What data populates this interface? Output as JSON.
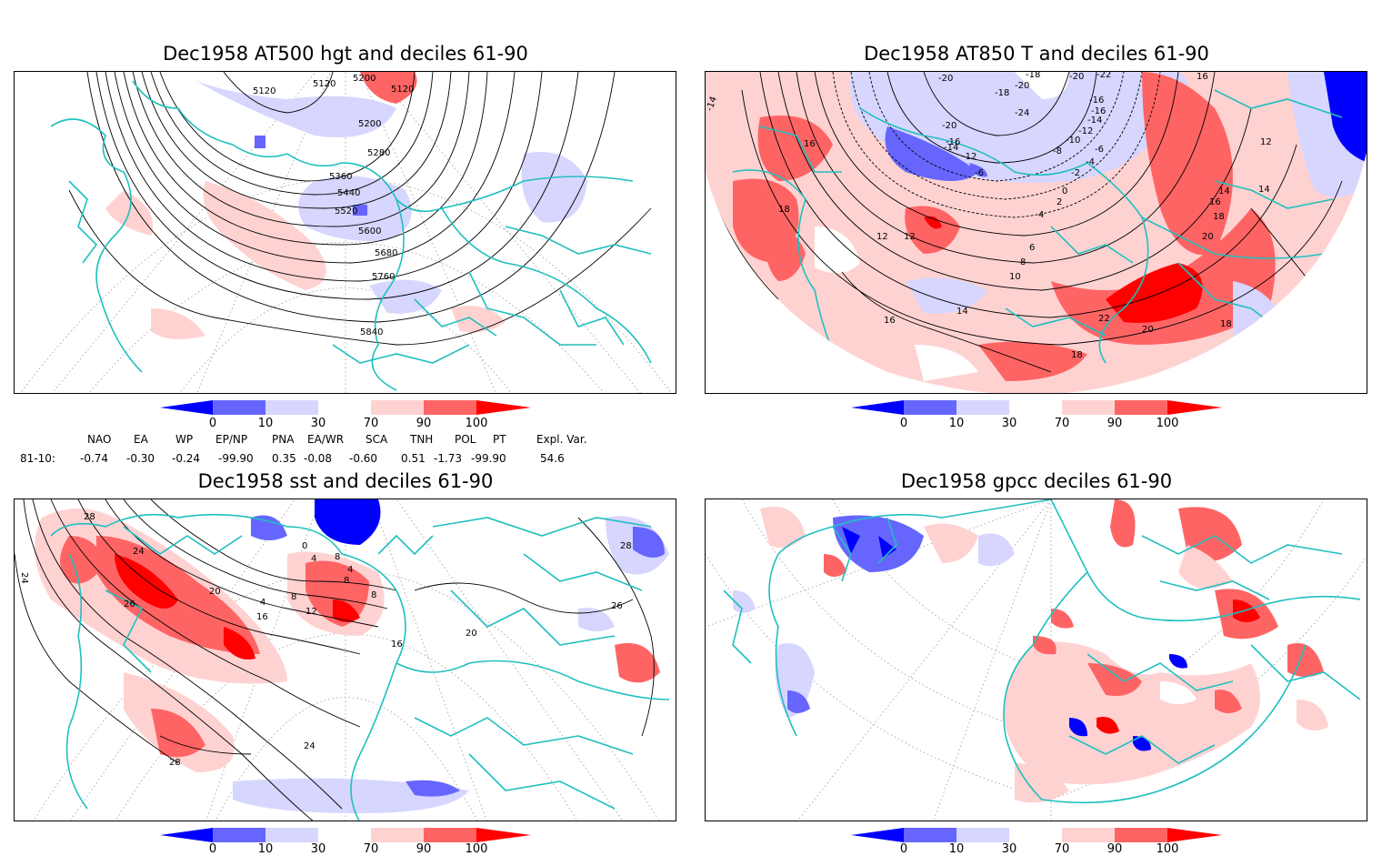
{
  "panels": [
    {
      "id": "hgt500",
      "title": "Dec1958 AT500 hgt and deciles 61-90",
      "contour_labels": [
        "5120",
        "5120",
        "5200",
        "5120",
        "5200",
        "5280",
        "5360",
        "5440",
        "5520",
        "5600",
        "5680",
        "5760",
        "5840"
      ]
    },
    {
      "id": "t850",
      "title": "Dec1958 AT850 T and deciles 61-90",
      "contour_labels": [
        "-14",
        "-20",
        "-18",
        "-20",
        "-22",
        "-20",
        "-18",
        "-24",
        "-16",
        "-16",
        "-14",
        "-12",
        "-10",
        "-8",
        "-6",
        "-4",
        "-2",
        "0",
        "2",
        "4",
        "6",
        "8",
        "10",
        "12",
        "14",
        "16",
        "16",
        "12",
        "14",
        "16",
        "18",
        "20",
        "22",
        "20",
        "18",
        "18",
        "16",
        "12",
        "14",
        "18",
        "-20",
        "-16",
        "-14",
        "-12",
        "-6"
      ]
    },
    {
      "id": "sst",
      "title": "Dec1958 sst and deciles 61-90",
      "contour_labels": [
        "28",
        "24",
        "26",
        "20",
        "16",
        "12",
        "8",
        "4",
        "0",
        "4",
        "8",
        "4",
        "8",
        "8",
        "16",
        "20",
        "28",
        "26",
        "24",
        "24",
        "28"
      ]
    },
    {
      "id": "gpcc",
      "title": "Dec1958 gpcc deciles 61-90",
      "contour_labels": []
    }
  ],
  "colorbar": {
    "labels": [
      "0",
      "10",
      "30",
      "70",
      "90",
      "100"
    ],
    "colors": [
      "#0000ff",
      "#6666ff",
      "#d6d6ff",
      "#ffffff",
      "#ffd2d2",
      "#ff6464",
      "#ff0000"
    ]
  },
  "indices": {
    "period": "81-10:",
    "columns": [
      {
        "name": "NAO",
        "value": "-0.74"
      },
      {
        "name": "EA",
        "value": "-0.30"
      },
      {
        "name": "WP",
        "value": "-0.24"
      },
      {
        "name": "EP/NP",
        "value": "-99.90"
      },
      {
        "name": "PNA",
        "value": "0.35"
      },
      {
        "name": "EA/WR",
        "value": "-0.08"
      },
      {
        "name": "SCA",
        "value": "-0.60"
      },
      {
        "name": "TNH",
        "value": "0.51"
      },
      {
        "name": "POL",
        "value": "-1.73"
      },
      {
        "name": "PT",
        "value": "-99.90"
      },
      {
        "name": "Expl. Var.",
        "value": "54.6"
      }
    ]
  },
  "colors": {
    "coast": "#1fbfbf",
    "contour": "#000000",
    "grid": "#9a9a9a",
    "strong_blue": "#0000ff",
    "mid_blue": "#6666ff",
    "light_blue": "#d6d6ff",
    "light_red": "#ffd2d2",
    "mid_red": "#ff6464",
    "strong_red": "#ff0000"
  }
}
